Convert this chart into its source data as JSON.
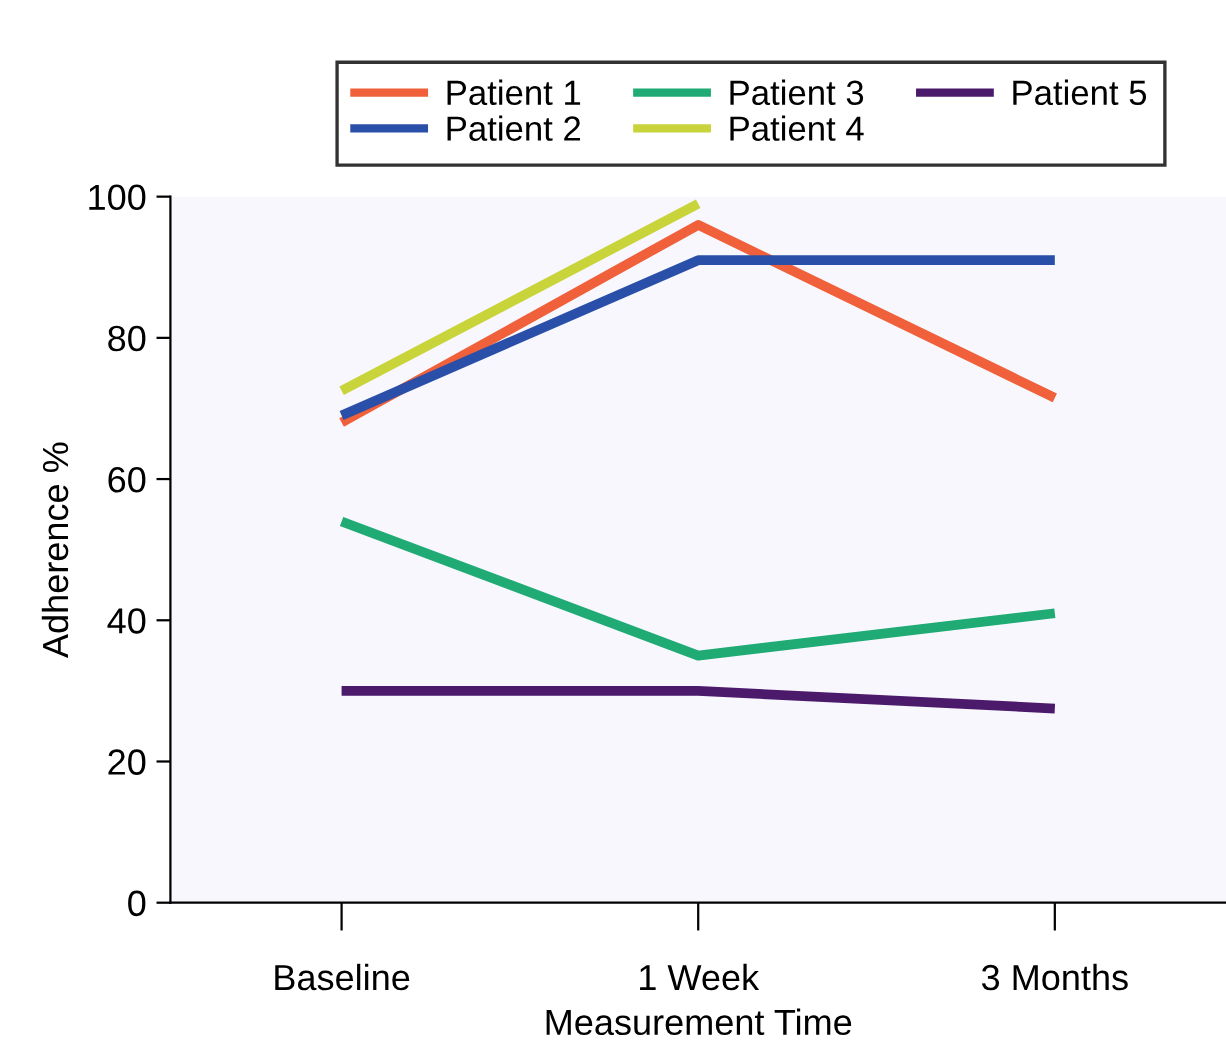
{
  "chart_data": {
    "type": "line",
    "xlabel": "Measurement Time",
    "ylabel": "Adherence %",
    "categories": [
      "Baseline",
      "1 Week",
      "3 Months"
    ],
    "series": [
      {
        "name": "Patient 1",
        "color": "#f0603a",
        "values": [
          68,
          96,
          71.5
        ]
      },
      {
        "name": "Patient 2",
        "color": "#2a4fa8",
        "values": [
          69,
          91,
          91
        ]
      },
      {
        "name": "Patient 3",
        "color": "#1fab73",
        "values": [
          54,
          35,
          41
        ]
      },
      {
        "name": "Patient 4",
        "color": "#c8d43a",
        "values": [
          72.5,
          99,
          null
        ]
      },
      {
        "name": "Patient 5",
        "color": "#4b1a6b",
        "values": [
          30,
          30,
          27.5
        ]
      }
    ],
    "ylim": [
      0,
      100
    ],
    "yticks": [
      0,
      20,
      40,
      60,
      80,
      100
    ],
    "grid": false,
    "legend": "top",
    "marker": "none",
    "line_style": "solid"
  }
}
